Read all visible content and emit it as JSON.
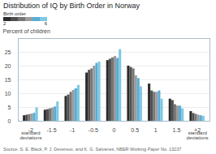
{
  "chart_data": {
    "type": "bar",
    "title": "Distribution of IQ by Birth Order in Norway",
    "ylabel": "Percent of children",
    "source": "Source: S. E. Black, P. J. Devereux, and K. G. Salvanes, NBER Working Paper No. 13237",
    "categories": [
      "-2",
      "-1.5",
      "-1",
      "-0.5",
      "0",
      "0.5",
      "1",
      "1.5",
      "+2"
    ],
    "series": [
      {
        "name": "2",
        "color": "#2b2b2b",
        "values": [
          2.0,
          4.0,
          9.0,
          17.5,
          22.0,
          20.0,
          13.5,
          8.0,
          3.5
        ]
      },
      {
        "name": null,
        "color": "#505050",
        "values": [
          2.2,
          4.2,
          9.5,
          18.5,
          22.5,
          19.5,
          11.0,
          7.5,
          2.8
        ]
      },
      {
        "name": null,
        "color": "#767676",
        "values": [
          2.4,
          4.5,
          10.5,
          19.0,
          23.0,
          19.0,
          10.5,
          6.0,
          2.5
        ]
      },
      {
        "name": null,
        "color": "#9c9c9c",
        "values": [
          2.6,
          4.8,
          11.2,
          20.0,
          23.5,
          16.5,
          10.5,
          5.5,
          2.2
        ]
      },
      {
        "name": null,
        "color": "#5aacd4",
        "values": [
          2.9,
          5.2,
          11.8,
          21.0,
          22.8,
          15.5,
          11.0,
          5.5,
          2.0
        ]
      },
      {
        "name": "6",
        "color": "#7ec8e3",
        "values": [
          4.8,
          7.0,
          13.0,
          21.5,
          26.0,
          12.5,
          8.0,
          4.5,
          1.8
        ]
      }
    ],
    "legend_title": "Birth order",
    "legend": "upper left",
    "ylim": [
      0,
      30
    ],
    "yticks": [
      0,
      5,
      10,
      15,
      20,
      25
    ],
    "grid": true,
    "annotations": [
      {
        "text": "standard\ndeviations",
        "x": "-2"
      },
      {
        "text": "standard\ndeviations",
        "x": "+2"
      }
    ]
  }
}
